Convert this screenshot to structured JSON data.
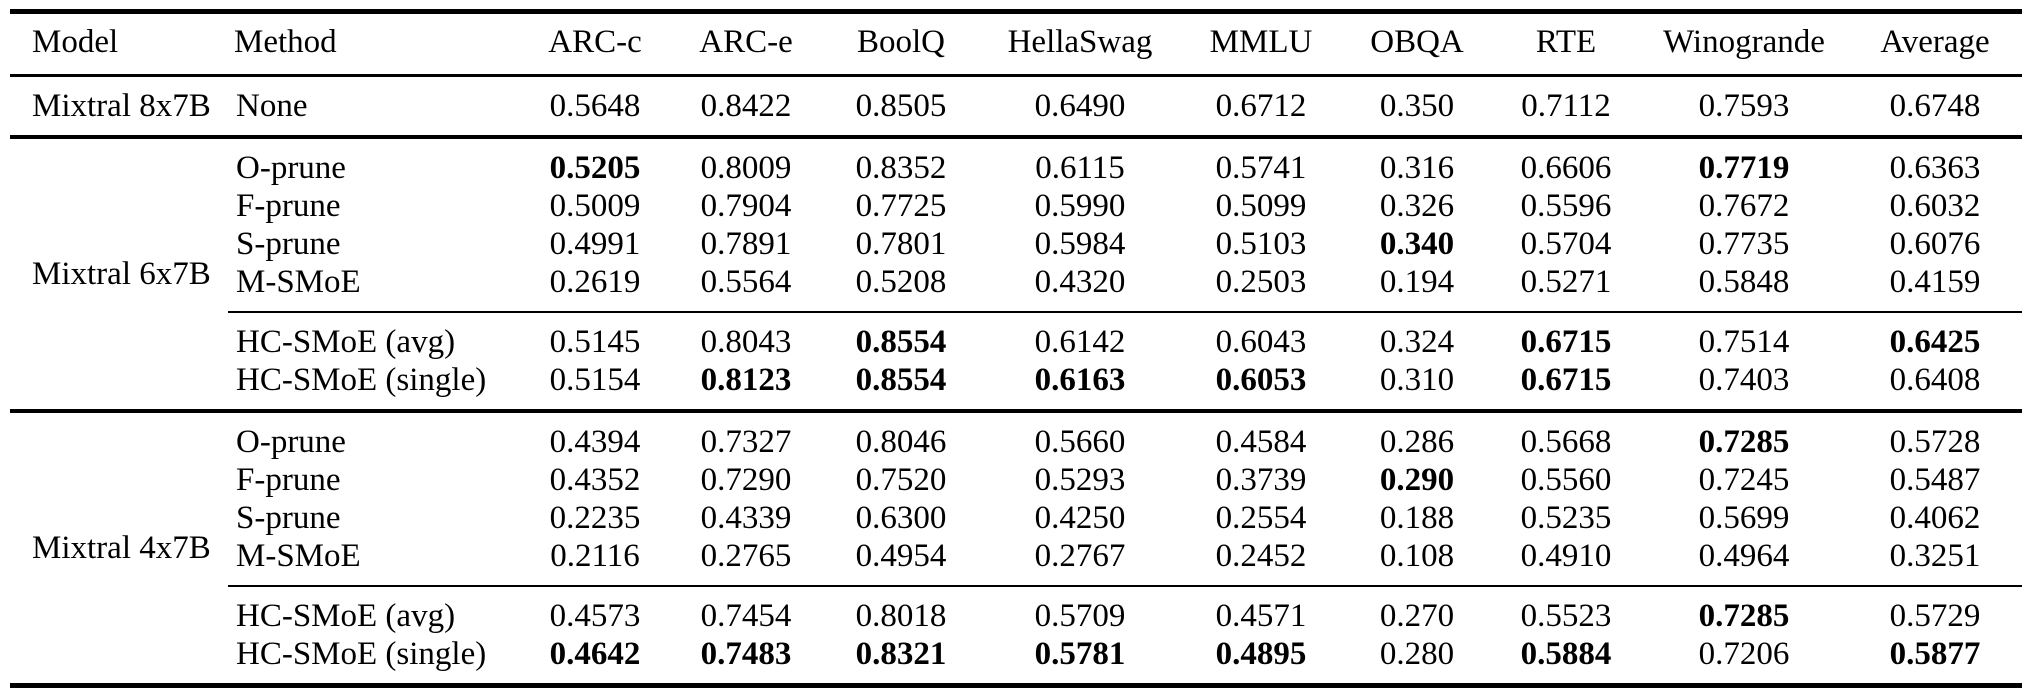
{
  "page": {
    "background": "#ffffff",
    "text_color": "#000000"
  },
  "table": {
    "columns": [
      "Model",
      "Method",
      "ARC-c",
      "ARC-e",
      "BoolQ",
      "HellaSwag",
      "MMLU",
      "OBQA",
      "RTE",
      "Winogrande",
      "Average"
    ],
    "sections": [
      {
        "model": "Mixtral 8x7B",
        "groups": [
          {
            "rows": [
              {
                "method": "None",
                "values": [
                  "0.5648",
                  "0.8422",
                  "0.8505",
                  "0.6490",
                  "0.6712",
                  "0.350",
                  "0.7112",
                  "0.7593",
                  "0.6748"
                ],
                "bold": [
                  0,
                  0,
                  0,
                  0,
                  0,
                  0,
                  0,
                  0,
                  0
                ]
              }
            ]
          }
        ]
      },
      {
        "model": "Mixtral 6x7B",
        "groups": [
          {
            "rows": [
              {
                "method": "O-prune",
                "values": [
                  "0.5205",
                  "0.8009",
                  "0.8352",
                  "0.6115",
                  "0.5741",
                  "0.316",
                  "0.6606",
                  "0.7719",
                  "0.6363"
                ],
                "bold": [
                  1,
                  0,
                  0,
                  0,
                  0,
                  0,
                  0,
                  1,
                  0
                ]
              },
              {
                "method": "F-prune",
                "values": [
                  "0.5009",
                  "0.7904",
                  "0.7725",
                  "0.5990",
                  "0.5099",
                  "0.326",
                  "0.5596",
                  "0.7672",
                  "0.6032"
                ],
                "bold": [
                  0,
                  0,
                  0,
                  0,
                  0,
                  0,
                  0,
                  0,
                  0
                ]
              },
              {
                "method": "S-prune",
                "values": [
                  "0.4991",
                  "0.7891",
                  "0.7801",
                  "0.5984",
                  "0.5103",
                  "0.340",
                  "0.5704",
                  "0.7735",
                  "0.6076"
                ],
                "bold": [
                  0,
                  0,
                  0,
                  0,
                  0,
                  1,
                  0,
                  0,
                  0
                ]
              },
              {
                "method": "M-SMoE",
                "values": [
                  "0.2619",
                  "0.5564",
                  "0.5208",
                  "0.4320",
                  "0.2503",
                  "0.194",
                  "0.5271",
                  "0.5848",
                  "0.4159"
                ],
                "bold": [
                  0,
                  0,
                  0,
                  0,
                  0,
                  0,
                  0,
                  0,
                  0
                ]
              }
            ]
          },
          {
            "rows": [
              {
                "method": "HC-SMoE (avg)",
                "values": [
                  "0.5145",
                  "0.8043",
                  "0.8554",
                  "0.6142",
                  "0.6043",
                  "0.324",
                  "0.6715",
                  "0.7514",
                  "0.6425"
                ],
                "bold": [
                  0,
                  0,
                  1,
                  0,
                  0,
                  0,
                  1,
                  0,
                  1
                ]
              },
              {
                "method": "HC-SMoE (single)",
                "values": [
                  "0.5154",
                  "0.8123",
                  "0.8554",
                  "0.6163",
                  "0.6053",
                  "0.310",
                  "0.6715",
                  "0.7403",
                  "0.6408"
                ],
                "bold": [
                  0,
                  1,
                  1,
                  1,
                  1,
                  0,
                  1,
                  0,
                  0
                ]
              }
            ]
          }
        ]
      },
      {
        "model": "Mixtral 4x7B",
        "groups": [
          {
            "rows": [
              {
                "method": "O-prune",
                "values": [
                  "0.4394",
                  "0.7327",
                  "0.8046",
                  "0.5660",
                  "0.4584",
                  "0.286",
                  "0.5668",
                  "0.7285",
                  "0.5728"
                ],
                "bold": [
                  0,
                  0,
                  0,
                  0,
                  0,
                  0,
                  0,
                  1,
                  0
                ]
              },
              {
                "method": "F-prune",
                "values": [
                  "0.4352",
                  "0.7290",
                  "0.7520",
                  "0.5293",
                  "0.3739",
                  "0.290",
                  "0.5560",
                  "0.7245",
                  "0.5487"
                ],
                "bold": [
                  0,
                  0,
                  0,
                  0,
                  0,
                  1,
                  0,
                  0,
                  0
                ]
              },
              {
                "method": "S-prune",
                "values": [
                  "0.2235",
                  "0.4339",
                  "0.6300",
                  "0.4250",
                  "0.2554",
                  "0.188",
                  "0.5235",
                  "0.5699",
                  "0.4062"
                ],
                "bold": [
                  0,
                  0,
                  0,
                  0,
                  0,
                  0,
                  0,
                  0,
                  0
                ]
              },
              {
                "method": "M-SMoE",
                "values": [
                  "0.2116",
                  "0.2765",
                  "0.4954",
                  "0.2767",
                  "0.2452",
                  "0.108",
                  "0.4910",
                  "0.4964",
                  "0.3251"
                ],
                "bold": [
                  0,
                  0,
                  0,
                  0,
                  0,
                  0,
                  0,
                  0,
                  0
                ]
              }
            ]
          },
          {
            "rows": [
              {
                "method": "HC-SMoE (avg)",
                "values": [
                  "0.4573",
                  "0.7454",
                  "0.8018",
                  "0.5709",
                  "0.4571",
                  "0.270",
                  "0.5523",
                  "0.7285",
                  "0.5729"
                ],
                "bold": [
                  0,
                  0,
                  0,
                  0,
                  0,
                  0,
                  0,
                  1,
                  0
                ]
              },
              {
                "method": "HC-SMoE (single)",
                "values": [
                  "0.4642",
                  "0.7483",
                  "0.8321",
                  "0.5781",
                  "0.4895",
                  "0.280",
                  "0.5884",
                  "0.7206",
                  "0.5877"
                ],
                "bold": [
                  1,
                  1,
                  1,
                  1,
                  1,
                  0,
                  1,
                  0,
                  1
                ]
              }
            ]
          }
        ]
      }
    ]
  }
}
